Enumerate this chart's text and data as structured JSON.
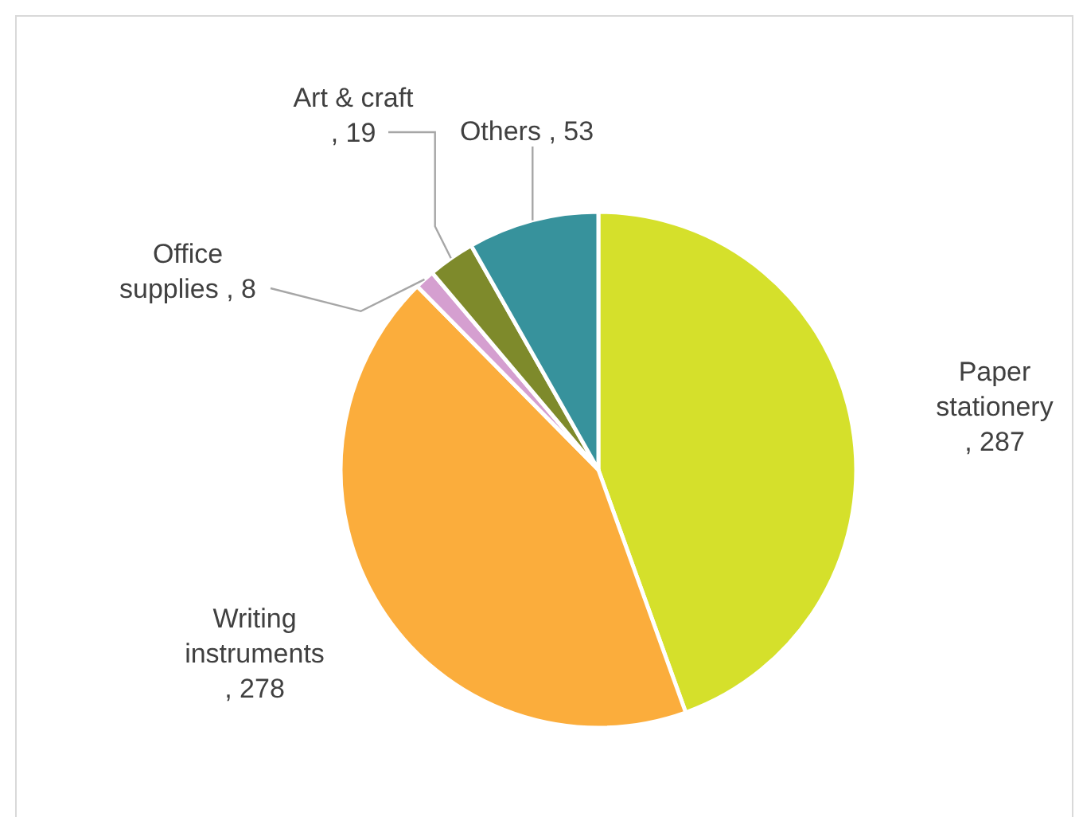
{
  "chart_data": {
    "type": "pie",
    "categories": [
      "Paper stationery",
      "Writing instruments",
      "Office supplies",
      "Art & craft",
      "Others"
    ],
    "values": [
      287,
      278,
      8,
      19,
      53
    ],
    "colors": [
      "#d5e02b",
      "#fbad3c",
      "#d59fd0",
      "#7e8a2b",
      "#37929c"
    ],
    "value_labels": [
      ", 287",
      ", 278",
      ", 8",
      ", 19",
      ", 53"
    ]
  }
}
